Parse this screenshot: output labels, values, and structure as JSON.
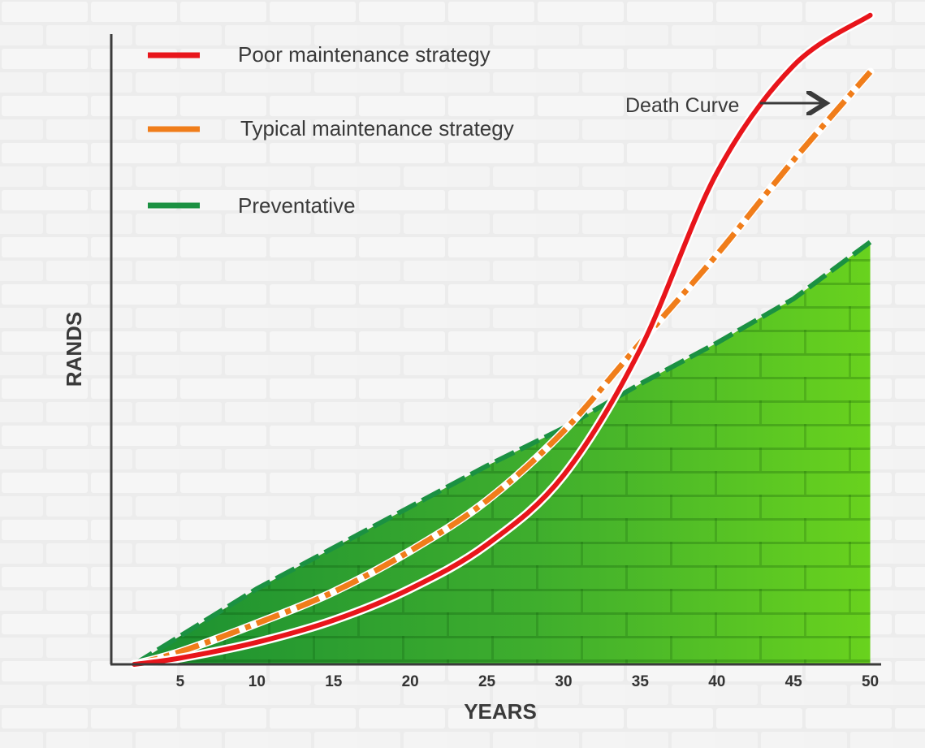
{
  "chart_data": {
    "type": "line",
    "x": [
      2,
      5,
      10,
      15,
      20,
      25,
      30,
      35,
      40,
      45,
      50
    ],
    "xticks": [
      5,
      10,
      15,
      20,
      25,
      30,
      35,
      40,
      45,
      50
    ],
    "xlim": [
      0.5,
      50.5
    ],
    "ylim": [
      0,
      100
    ],
    "xlabel": "YEARS",
    "ylabel": "RANDS",
    "title": "",
    "grid": false,
    "legend_position": "top-left",
    "series": [
      {
        "name": "Poor maintenance strategy",
        "color": "#e8151b",
        "style": "solid",
        "values": [
          0,
          1,
          3.5,
          7,
          12,
          19,
          30,
          50,
          78,
          95,
          103
        ]
      },
      {
        "name": "Typical maintenance strategy",
        "color": "#f07d1a",
        "style": "dash-dot",
        "values": [
          0,
          2,
          6.5,
          11.5,
          18,
          26,
          37,
          51,
          65,
          80,
          94
        ]
      },
      {
        "name": "Preventative",
        "color": "#1b9142",
        "style": "dashed",
        "fill": true,
        "values": [
          0,
          4.5,
          12,
          18.5,
          25,
          31.5,
          37.5,
          44.5,
          51,
          58,
          67
        ]
      }
    ],
    "annotations": [
      {
        "text": "Death Curve",
        "x": 47.5,
        "y": 94.5,
        "arrow_to_series": "Poor maintenance strategy"
      }
    ]
  }
}
